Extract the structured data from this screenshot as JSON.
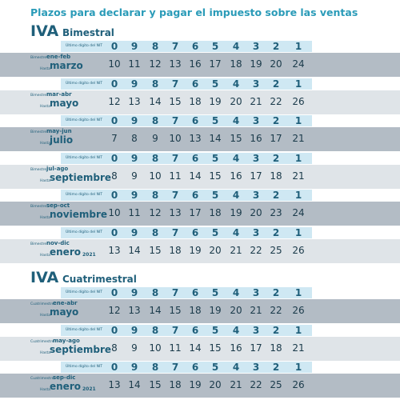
{
  "title": "Plazos para declarar y pagar el impuesto sobre las ventas",
  "header": {
    "label": "Último dígito del NIT",
    "digits": [
      0,
      9,
      8,
      7,
      6,
      5,
      4,
      3,
      2,
      1
    ]
  },
  "sections": [
    {
      "label": "IVA",
      "subtitle": "Bimestral",
      "rows": [
        {
          "period_label": "Bimestre",
          "period": "ene-feb",
          "due_label": "Hasta",
          "due": "marzo",
          "values": [
            10,
            11,
            12,
            13,
            16,
            17,
            18,
            19,
            20,
            24
          ]
        },
        {
          "period_label": "Bimestre",
          "period": "mar-abr",
          "due_label": "Hasta",
          "due": "mayo",
          "values": [
            12,
            13,
            14,
            15,
            18,
            19,
            20,
            21,
            22,
            26
          ]
        },
        {
          "period_label": "Bimestre",
          "period": "may-jun",
          "due_label": "Hasta",
          "due": "julio",
          "values": [
            7,
            8,
            9,
            10,
            13,
            14,
            15,
            16,
            17,
            21
          ]
        },
        {
          "period_label": "Bimestre",
          "period": "jul-ago",
          "due_label": "Hasta",
          "due": "septiembre",
          "values": [
            8,
            9,
            10,
            11,
            14,
            15,
            16,
            17,
            18,
            21
          ]
        },
        {
          "period_label": "Bimestre",
          "period": "sep-oct",
          "due_label": "Hasta",
          "due": "noviembre",
          "values": [
            10,
            11,
            12,
            13,
            17,
            18,
            19,
            20,
            23,
            24
          ]
        },
        {
          "period_label": "Bimestre",
          "period": "nov-dic",
          "due_label": "Hasta",
          "due": "enero",
          "due_year": "2021",
          "values": [
            13,
            14,
            15,
            18,
            19,
            20,
            21,
            22,
            25,
            26
          ]
        }
      ]
    },
    {
      "label": "IVA",
      "subtitle": "Cuatrimestral",
      "rows": [
        {
          "period_label": "Cuatrimestre",
          "period": "ene-abr",
          "due_label": "Hasta",
          "due": "mayo",
          "values": [
            12,
            13,
            14,
            15,
            18,
            19,
            20,
            21,
            22,
            26
          ]
        },
        {
          "period_label": "Cuatrimestre",
          "period": "may-ago",
          "due_label": "Hasta",
          "due": "septiembre",
          "values": [
            8,
            9,
            10,
            11,
            14,
            15,
            16,
            17,
            18,
            21
          ]
        },
        {
          "period_label": "Cuatrimestre",
          "period": "sep-dic",
          "due_label": "Hasta",
          "due": "enero",
          "due_year": "2021",
          "values": [
            13,
            14,
            15,
            18,
            19,
            20,
            21,
            22,
            25,
            26
          ]
        }
      ]
    }
  ]
}
